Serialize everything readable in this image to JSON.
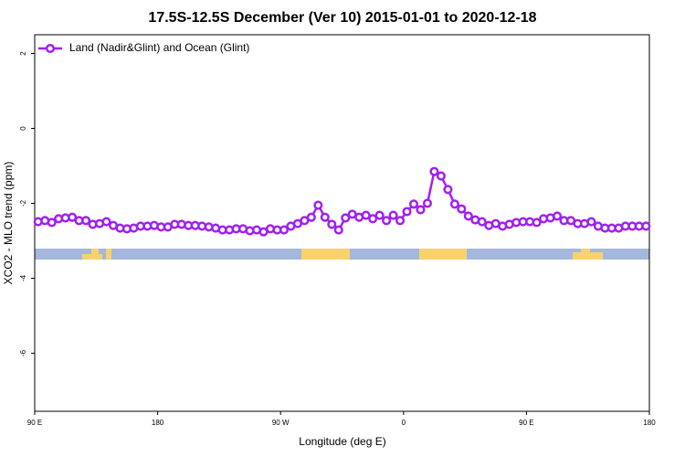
{
  "chart_data": {
    "type": "line",
    "title": "17.5S-12.5S December (Ver 10)   2015-01-01 to 2020-12-18",
    "x_label": "Longitude (deg E)",
    "y_label": "XCO2 - MLO trend (ppm)",
    "xlim": [
      90,
      540
    ],
    "xticks": [
      {
        "value": 90,
        "label": "90 E"
      },
      {
        "value": 180,
        "label": "180"
      },
      {
        "value": 270,
        "label": "90 W"
      },
      {
        "value": 360,
        "label": "0"
      },
      {
        "value": 450,
        "label": "90 E"
      },
      {
        "value": 540,
        "label": "180"
      }
    ],
    "ylim": [
      -7.55,
      2.5
    ],
    "yticks": [
      2,
      0,
      -2,
      -4,
      -6
    ],
    "legend": "top-left",
    "x": [
      92.5,
      97.5,
      102.5,
      107.5,
      112.5,
      117.5,
      122.5,
      127.5,
      132.5,
      137.5,
      142.5,
      147.5,
      152.5,
      157.5,
      162.5,
      167.5,
      172.5,
      177.5,
      182.5,
      187.5,
      192.5,
      197.5,
      202.5,
      207.5,
      212.5,
      217.5,
      222.5,
      227.5,
      232.5,
      237.5,
      242.5,
      247.5,
      252.5,
      257.5,
      262.5,
      267.5,
      272.5,
      277.5,
      282.5,
      287.5,
      292.5,
      297.5,
      302.5,
      307.5,
      312.5,
      317.5,
      322.5,
      327.5,
      332.5,
      337.5,
      342.5,
      347.5,
      352.5,
      357.5,
      362.5,
      367.5,
      372.5,
      377.5,
      382.5,
      387.5,
      392.5,
      397.5,
      402.5,
      407.5,
      412.5,
      417.5,
      422.5,
      427.5,
      432.5,
      437.5,
      442.5,
      447.5,
      452.5,
      457.5,
      462.5,
      467.5,
      472.5,
      477.5,
      482.5,
      487.5,
      492.5,
      497.5,
      502.5,
      507.5,
      512.5,
      517.5,
      522.5,
      527.5,
      532.5,
      537.5
    ],
    "series": [
      {
        "name": "Land (Nadir&Glint) and Ocean (Glint)",
        "color": "#a020f0",
        "values": [
          -2.49,
          -2.46,
          -2.51,
          -2.41,
          -2.39,
          -2.37,
          -2.46,
          -2.46,
          -2.56,
          -2.54,
          -2.49,
          -2.59,
          -2.66,
          -2.68,
          -2.66,
          -2.61,
          -2.61,
          -2.59,
          -2.63,
          -2.63,
          -2.56,
          -2.56,
          -2.59,
          -2.59,
          -2.61,
          -2.63,
          -2.66,
          -2.71,
          -2.71,
          -2.68,
          -2.68,
          -2.73,
          -2.71,
          -2.76,
          -2.68,
          -2.71,
          -2.71,
          -2.61,
          -2.54,
          -2.46,
          -2.37,
          -2.05,
          -2.37,
          -2.56,
          -2.71,
          -2.39,
          -2.29,
          -2.37,
          -2.32,
          -2.41,
          -2.32,
          -2.46,
          -2.32,
          -2.46,
          -2.22,
          -2.02,
          -2.17,
          -2.0,
          -1.15,
          -1.27,
          -1.63,
          -2.02,
          -2.15,
          -2.34,
          -2.44,
          -2.49,
          -2.59,
          -2.54,
          -2.61,
          -2.56,
          -2.51,
          -2.49,
          -2.49,
          -2.51,
          -2.41,
          -2.39,
          -2.34,
          -2.46,
          -2.46,
          -2.54,
          -2.54,
          -2.49,
          -2.61,
          -2.66,
          -2.66,
          -2.66,
          -2.61,
          -2.61,
          -2.61,
          -2.61
        ]
      }
    ]
  }
}
